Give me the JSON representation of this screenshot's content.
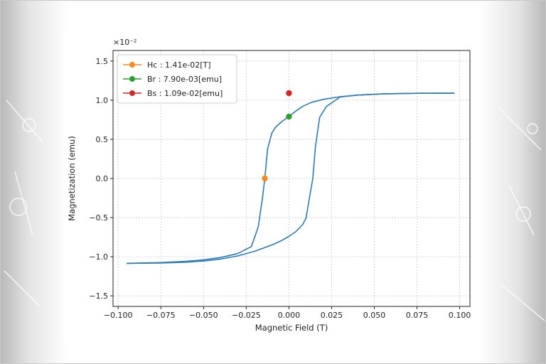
{
  "chart_data": {
    "type": "line",
    "title": "",
    "xlabel": "Magnetic Field (T)",
    "ylabel": "Magnetization (emu)",
    "y_scale_label": "×10⁻²",
    "xlim": [
      -0.103,
      0.106
    ],
    "ylim": [
      -0.01635,
      0.01635
    ],
    "x_ticks": [
      -0.1,
      -0.075,
      -0.05,
      -0.025,
      0.0,
      0.025,
      0.05,
      0.075,
      0.1
    ],
    "x_tick_labels": [
      "−0.100",
      "−0.075",
      "−0.050",
      "−0.025",
      "0.000",
      "0.025",
      "0.050",
      "0.075",
      "0.100"
    ],
    "y_ticks": [
      -0.015,
      -0.01,
      -0.005,
      0.0,
      0.005,
      0.01,
      0.015
    ],
    "y_tick_labels": [
      "−1.5",
      "−1.0",
      "−0.5",
      "0.0",
      "0.5",
      "1.0",
      "1.5"
    ],
    "grid": true,
    "grid_style": "dotted",
    "legend_position": "top-left",
    "series": [
      {
        "kind": "line",
        "color": "#2d7bb6",
        "x": [
          -0.095,
          -0.075,
          -0.06,
          -0.05,
          -0.04,
          -0.03,
          -0.022,
          -0.018,
          -0.0155,
          -0.0141,
          -0.0125,
          -0.01,
          -0.008,
          -0.004,
          0.0,
          0.004,
          0.008,
          0.013,
          0.02,
          0.03,
          0.04,
          0.055,
          0.075,
          0.097
        ],
        "y": [
          -0.01085,
          -0.01075,
          -0.01058,
          -0.0104,
          -0.0101,
          -0.0096,
          -0.0087,
          -0.0062,
          -0.0025,
          0.0,
          0.0038,
          0.0058,
          0.0065,
          0.0073,
          0.0079,
          0.0086,
          0.0092,
          0.0097,
          0.0101,
          0.01045,
          0.01065,
          0.0108,
          0.01088,
          0.0109
        ]
      },
      {
        "kind": "line",
        "color": "#2d7bb6",
        "x": [
          0.097,
          0.075,
          0.055,
          0.04,
          0.03,
          0.022,
          0.018,
          0.0155,
          0.014,
          0.012,
          0.01,
          0.008,
          0.004,
          0.0,
          -0.004,
          -0.01,
          -0.02,
          -0.03,
          -0.04,
          -0.05,
          -0.06,
          -0.075,
          -0.095
        ],
        "y": [
          0.0109,
          0.01088,
          0.0108,
          0.01065,
          0.0104,
          0.0092,
          0.0078,
          0.004,
          0.0,
          -0.0025,
          -0.0051,
          -0.0059,
          -0.0068,
          -0.0074,
          -0.0079,
          -0.0085,
          -0.0093,
          -0.0099,
          -0.0103,
          -0.01055,
          -0.0107,
          -0.0108,
          -0.01085
        ]
      }
    ],
    "markers": [
      {
        "label": "Hc : 1.41e-02[T]",
        "color": "#f28c1e",
        "x": -0.0141,
        "y": 0.0
      },
      {
        "label": "Br : 7.90e-03[emu]",
        "color": "#2ca02c",
        "x": 0.0,
        "y": 0.0079
      },
      {
        "label": "Bs : 1.09e-02[emu]",
        "color": "#d62728",
        "x": 0.0,
        "y": 0.0109
      }
    ]
  }
}
